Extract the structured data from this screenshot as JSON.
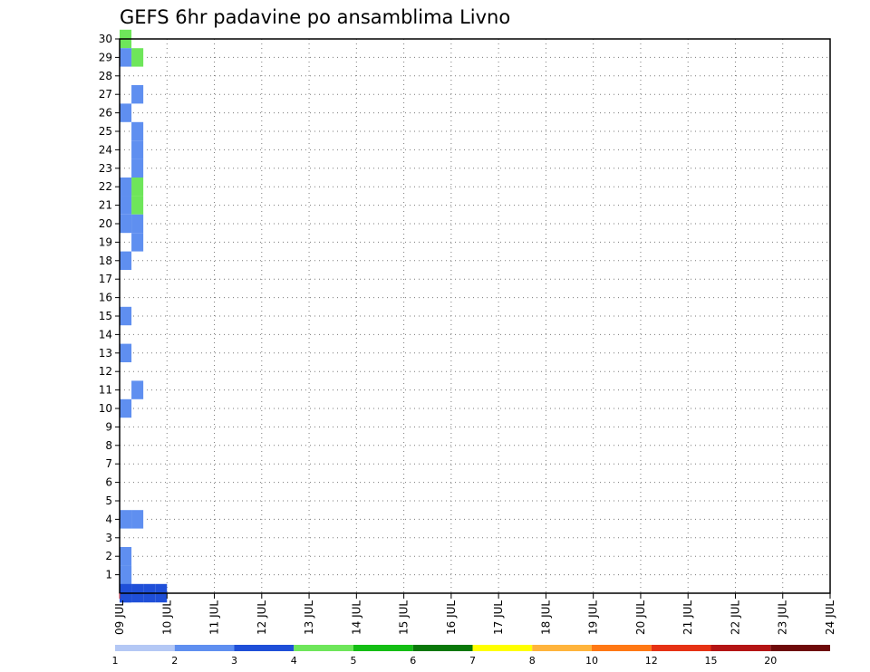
{
  "chart_data": {
    "type": "heatmap",
    "title": "GEFS 6hr padavine po ansamblima Livno",
    "x_ticks": [
      "09 JUL",
      "10 JUL",
      "11 JUL",
      "12 JUL",
      "13 JUL",
      "14 JUL",
      "15 JUL",
      "16 JUL",
      "17 JUL",
      "18 JUL",
      "19 JUL",
      "20 JUL",
      "21 JUL",
      "22 JUL",
      "23 JUL",
      "24 JUL"
    ],
    "x_unit": "days from 09 JUL 00z",
    "x_range": [
      0,
      15
    ],
    "y_ticks": [
      1,
      2,
      3,
      4,
      5,
      6,
      7,
      8,
      9,
      10,
      11,
      12,
      13,
      14,
      15,
      16,
      17,
      18,
      19,
      20,
      21,
      22,
      23,
      24,
      25,
      26,
      27,
      28,
      29,
      30
    ],
    "y_range": [
      0,
      30
    ],
    "grid": "dotted",
    "colorbar": {
      "boundaries": [
        "1",
        "2",
        "3",
        "4",
        "5",
        "6",
        "7",
        "8",
        "10",
        "12",
        "15",
        "20"
      ],
      "colors": [
        "#b4c8f5",
        "#5f8ff0",
        "#1f4fd8",
        "#6ee65a",
        "#14be14",
        "#0a780a",
        "#ffff00",
        "#ffb43c",
        "#ff7814",
        "#e63214",
        "#b41414",
        "#6e0a0a"
      ]
    },
    "cells": [
      [
        0.0,
        30,
        4.5,
        1
      ],
      [
        0.25,
        29,
        4.5,
        3
      ],
      [
        0.25,
        22,
        4.5,
        5
      ],
      [
        0.25,
        21,
        4.5,
        8
      ],
      [
        0.0,
        29,
        2.75,
        1
      ],
      [
        0.25,
        27,
        2.75,
        3
      ],
      [
        0.0,
        26,
        2.75,
        3
      ],
      [
        0.25,
        25,
        2.75,
        3
      ],
      [
        0.0,
        22,
        2.75,
        4
      ],
      [
        0.25,
        24,
        2.75,
        6
      ],
      [
        0.25,
        23,
        2.75,
        9
      ],
      [
        0.0,
        22,
        2.75,
        11
      ],
      [
        0.0,
        21,
        2.75,
        12
      ],
      [
        0.25,
        20,
        2.75,
        13
      ],
      [
        0.0,
        20,
        2.75,
        14
      ],
      [
        0.25,
        19,
        2.75,
        15
      ],
      [
        0.0,
        18,
        2.75,
        16
      ],
      [
        0.0,
        15,
        2.75,
        17
      ],
      [
        0.0,
        13,
        2.75,
        18
      ],
      [
        0.25,
        11,
        2.75,
        19
      ],
      [
        0.0,
        10,
        2.75,
        20
      ],
      [
        0.25,
        4,
        2.75,
        21
      ],
      [
        0.0,
        4,
        2.75,
        22
      ],
      [
        0.0,
        2,
        2.75,
        24
      ],
      [
        0.0,
        1,
        2.75,
        27
      ],
      [
        0.0,
        0,
        2.75,
        28
      ],
      [
        0.0,
        0,
        2.75,
        29
      ],
      [
        0.0,
        1,
        2.75,
        30
      ],
      [
        0.0,
        0,
        3.25,
        1
      ],
      [
        0.25,
        0,
        3.25,
        2
      ],
      [
        0.5,
        0,
        3.25,
        3
      ],
      [
        0.75,
        0,
        3.25,
        4
      ]
    ]
  }
}
